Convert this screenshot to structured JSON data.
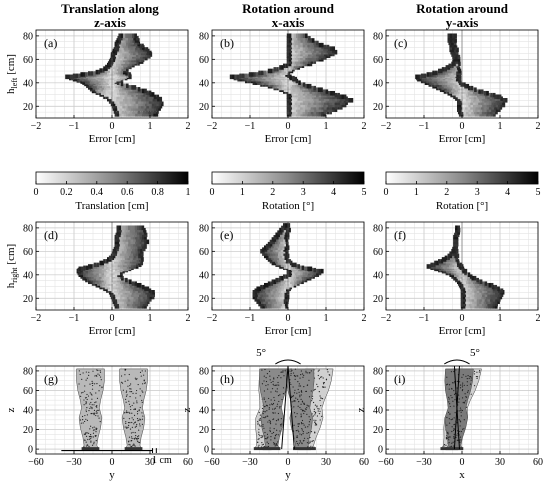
{
  "column_titles": [
    [
      "Translation along",
      "z-axis"
    ],
    [
      "Rotation around",
      "x-axis"
    ],
    [
      "Rotation around",
      "y-axis"
    ]
  ],
  "annotations": {
    "angle_h": "5°",
    "angle_i": "5°",
    "scale_g": "1 cm"
  },
  "chart_data": [
    {
      "id": "a",
      "type": "heatmap",
      "label": "(a)",
      "xlabel": "Error [cm]",
      "ylabel": "h",
      "ylabel_sub": "left",
      "ylabel_unit": "[cm]",
      "xlim": [
        -2,
        2
      ],
      "ylim": [
        10,
        85
      ],
      "xticks": [
        "−2",
        "−1",
        "0",
        "1",
        "2"
      ],
      "yticks": [
        "20",
        "40",
        "60",
        "80"
      ],
      "profile": [
        [
          13,
          0.1,
          1.2
        ],
        [
          18,
          0.05,
          1.3
        ],
        [
          22,
          0.0,
          1.35
        ],
        [
          26,
          -0.1,
          1.3
        ],
        [
          30,
          -0.3,
          1.1
        ],
        [
          33,
          -0.5,
          0.9
        ],
        [
          36,
          -0.6,
          0.6
        ],
        [
          39,
          -0.7,
          0.3
        ],
        [
          41,
          -0.8,
          0.15
        ],
        [
          43,
          -1.0,
          0.3
        ],
        [
          45,
          -1.2,
          0.5
        ],
        [
          47,
          -0.8,
          0.5
        ],
        [
          49,
          -0.4,
          0.35
        ],
        [
          52,
          -0.2,
          0.45
        ],
        [
          55,
          -0.1,
          0.6
        ],
        [
          58,
          -0.05,
          0.8
        ],
        [
          61,
          0.0,
          0.95
        ],
        [
          64,
          0.0,
          1.05
        ],
        [
          67,
          0.05,
          1.0
        ],
        [
          70,
          0.1,
          0.85
        ],
        [
          73,
          0.1,
          0.75
        ],
        [
          76,
          0.15,
          0.7
        ],
        [
          80,
          0.2,
          0.65
        ]
      ]
    },
    {
      "id": "b",
      "type": "heatmap",
      "label": "(b)",
      "xlabel": "Error [cm]",
      "ylabel": "",
      "xlim": [
        -2,
        2
      ],
      "ylim": [
        10,
        85
      ],
      "xticks": [
        "−2",
        "−1",
        "0",
        "1",
        "2"
      ],
      "yticks": [
        "20",
        "40",
        "60",
        "80"
      ],
      "profile": [
        [
          13,
          0.0,
          1.0
        ],
        [
          17,
          0.0,
          1.3
        ],
        [
          21,
          0.0,
          1.5
        ],
        [
          25,
          0.0,
          1.7
        ],
        [
          28,
          0.0,
          1.5
        ],
        [
          31,
          0.0,
          1.2
        ],
        [
          34,
          -0.2,
          0.9
        ],
        [
          37,
          -0.5,
          0.6
        ],
        [
          40,
          -0.9,
          0.35
        ],
        [
          43,
          -1.3,
          0.2
        ],
        [
          45,
          -1.5,
          0.1
        ],
        [
          47,
          -1.0,
          0.0
        ],
        [
          50,
          -0.5,
          0.1
        ],
        [
          53,
          -0.2,
          0.3
        ],
        [
          56,
          0.0,
          0.6
        ],
        [
          60,
          0.0,
          0.9
        ],
        [
          63,
          0.0,
          1.1
        ],
        [
          66,
          0.0,
          1.3
        ],
        [
          69,
          0.0,
          1.2
        ],
        [
          72,
          0.0,
          0.9
        ],
        [
          76,
          0.0,
          0.7
        ],
        [
          80,
          0.0,
          0.5
        ]
      ]
    },
    {
      "id": "c",
      "type": "heatmap",
      "label": "(c)",
      "xlabel": "Error [cm]",
      "ylabel": "",
      "xlim": [
        -2,
        2
      ],
      "ylim": [
        10,
        85
      ],
      "xticks": [
        "−2",
        "−1",
        "0",
        "1",
        "2"
      ],
      "yticks": [
        "20",
        "40",
        "60",
        "80"
      ],
      "profile": [
        [
          13,
          -0.05,
          0.9
        ],
        [
          17,
          -0.1,
          1.0
        ],
        [
          21,
          -0.1,
          1.1
        ],
        [
          25,
          -0.1,
          1.2
        ],
        [
          28,
          -0.2,
          1.0
        ],
        [
          31,
          -0.35,
          0.7
        ],
        [
          34,
          -0.55,
          0.4
        ],
        [
          37,
          -0.75,
          0.15
        ],
        [
          40,
          -0.95,
          0.0
        ],
        [
          43,
          -1.15,
          -0.05
        ],
        [
          45,
          -1.2,
          -0.05
        ],
        [
          47,
          -0.9,
          -0.05
        ],
        [
          50,
          -0.6,
          -0.05
        ],
        [
          53,
          -0.4,
          -0.05
        ],
        [
          56,
          -0.25,
          -0.05
        ],
        [
          60,
          -0.2,
          -0.05
        ],
        [
          64,
          -0.25,
          -0.1
        ],
        [
          68,
          -0.3,
          -0.1
        ],
        [
          72,
          -0.3,
          -0.15
        ],
        [
          76,
          -0.35,
          -0.15
        ],
        [
          80,
          -0.35,
          -0.15
        ]
      ]
    },
    {
      "id": "d",
      "type": "heatmap",
      "label": "(d)",
      "xlabel": "Error [cm]",
      "ylabel": "h",
      "ylabel_sub": "right",
      "ylabel_unit": "[cm]",
      "xlim": [
        -2,
        2
      ],
      "ylim": [
        10,
        85
      ],
      "xticks": [
        "−2",
        "−1",
        "0",
        "1",
        "2"
      ],
      "yticks": [
        "20",
        "40",
        "60",
        "80"
      ],
      "profile": [
        [
          13,
          0.1,
          0.9
        ],
        [
          17,
          0.05,
          1.0
        ],
        [
          21,
          0.0,
          1.1
        ],
        [
          25,
          -0.05,
          1.1
        ],
        [
          28,
          -0.2,
          0.95
        ],
        [
          31,
          -0.4,
          0.75
        ],
        [
          34,
          -0.6,
          0.5
        ],
        [
          37,
          -0.75,
          0.3
        ],
        [
          40,
          -0.85,
          0.25
        ],
        [
          43,
          -0.9,
          0.3
        ],
        [
          45,
          -0.85,
          0.5
        ],
        [
          47,
          -0.6,
          0.7
        ],
        [
          50,
          -0.3,
          0.8
        ],
        [
          53,
          -0.1,
          0.85
        ],
        [
          56,
          0.0,
          0.8
        ],
        [
          60,
          0.05,
          0.8
        ],
        [
          64,
          0.1,
          0.9
        ],
        [
          68,
          0.1,
          0.95
        ],
        [
          72,
          0.1,
          0.9
        ],
        [
          76,
          0.15,
          0.9
        ],
        [
          80,
          0.15,
          0.85
        ]
      ]
    },
    {
      "id": "e",
      "type": "heatmap",
      "label": "(e)",
      "xlabel": "Error [cm]",
      "ylabel": "",
      "xlim": [
        -2,
        2
      ],
      "ylim": [
        10,
        85
      ],
      "xticks": [
        "−2",
        "−1",
        "0",
        "1",
        "2"
      ],
      "yticks": [
        "20",
        "40",
        "60",
        "80"
      ],
      "profile": [
        [
          13,
          -0.7,
          0.0
        ],
        [
          17,
          -0.8,
          0.0
        ],
        [
          21,
          -0.9,
          0.0
        ],
        [
          25,
          -0.9,
          0.0
        ],
        [
          28,
          -0.8,
          0.05
        ],
        [
          31,
          -0.6,
          0.2
        ],
        [
          34,
          -0.4,
          0.4
        ],
        [
          37,
          -0.2,
          0.6
        ],
        [
          40,
          0.0,
          0.8
        ],
        [
          43,
          0.0,
          0.9
        ],
        [
          45,
          0.0,
          0.6
        ],
        [
          47,
          -0.2,
          0.3
        ],
        [
          50,
          -0.4,
          0.1
        ],
        [
          53,
          -0.5,
          0.0
        ],
        [
          56,
          -0.6,
          0.0
        ],
        [
          60,
          -0.7,
          0.0
        ],
        [
          63,
          -0.6,
          0.0
        ],
        [
          66,
          -0.5,
          0.0
        ],
        [
          70,
          -0.4,
          0.0
        ],
        [
          74,
          -0.3,
          0.0
        ],
        [
          78,
          -0.2,
          0.05
        ],
        [
          82,
          -0.1,
          0.05
        ]
      ]
    },
    {
      "id": "f",
      "type": "heatmap",
      "label": "(f)",
      "xlabel": "Error [cm]",
      "ylabel": "",
      "xlim": [
        -2,
        2
      ],
      "ylim": [
        10,
        85
      ],
      "xticks": [
        "−2",
        "−1",
        "0",
        "1",
        "2"
      ],
      "yticks": [
        "20",
        "40",
        "60",
        "80"
      ],
      "profile": [
        [
          13,
          0.0,
          0.9
        ],
        [
          17,
          0.0,
          1.0
        ],
        [
          21,
          0.0,
          1.05
        ],
        [
          25,
          0.0,
          1.1
        ],
        [
          28,
          0.0,
          1.0
        ],
        [
          31,
          -0.05,
          0.8
        ],
        [
          34,
          -0.1,
          0.55
        ],
        [
          37,
          -0.2,
          0.35
        ],
        [
          40,
          -0.3,
          0.2
        ],
        [
          43,
          -0.5,
          0.1
        ],
        [
          45,
          -0.7,
          0.05
        ],
        [
          47,
          -0.9,
          0.0
        ],
        [
          50,
          -0.7,
          -0.05
        ],
        [
          53,
          -0.5,
          -0.1
        ],
        [
          56,
          -0.35,
          -0.1
        ],
        [
          60,
          -0.25,
          -0.1
        ],
        [
          64,
          -0.2,
          -0.1
        ],
        [
          68,
          -0.2,
          -0.1
        ],
        [
          72,
          -0.2,
          -0.1
        ],
        [
          76,
          -0.15,
          -0.05
        ],
        [
          80,
          -0.15,
          -0.05
        ]
      ]
    },
    {
      "id": "g",
      "type": "scatter",
      "label": "(g)",
      "xlabel": "y",
      "ylabel": "z",
      "xlim": [
        -60,
        60
      ],
      "ylim": [
        -5,
        85
      ],
      "xticks": [
        "−60",
        "−30",
        "0",
        "30",
        "60"
      ],
      "yticks": [
        "0",
        "20",
        "40",
        "60",
        "80"
      ]
    },
    {
      "id": "h",
      "type": "scatter",
      "label": "(h)",
      "xlabel": "y",
      "ylabel": "z",
      "xlim": [
        -60,
        60
      ],
      "ylim": [
        -5,
        85
      ],
      "xticks": [
        "−60",
        "−30",
        "0",
        "30",
        "60"
      ],
      "yticks": [
        "0",
        "20",
        "40",
        "60",
        "80"
      ]
    },
    {
      "id": "i",
      "type": "scatter",
      "label": "(i)",
      "xlabel": "x",
      "ylabel": "z",
      "xlim": [
        -60,
        60
      ],
      "ylim": [
        -5,
        85
      ],
      "xticks": [
        "−60",
        "−30",
        "0",
        "30",
        "60"
      ],
      "yticks": [
        "0",
        "20",
        "40",
        "60",
        "80"
      ]
    }
  ],
  "colorbars": [
    {
      "label": "Translation [cm]",
      "min": 0,
      "max": 1,
      "ticks": [
        "0",
        "0.2",
        "0.4",
        "0.6",
        "0.8",
        "1"
      ]
    },
    {
      "label": "Rotation [°]",
      "min": 0,
      "max": 5,
      "ticks": [
        "0",
        "1",
        "2",
        "3",
        "4",
        "5"
      ]
    },
    {
      "label": "Rotation [°]",
      "min": 0,
      "max": 5,
      "ticks": [
        "0",
        "1",
        "2",
        "3",
        "4",
        "5"
      ]
    }
  ]
}
